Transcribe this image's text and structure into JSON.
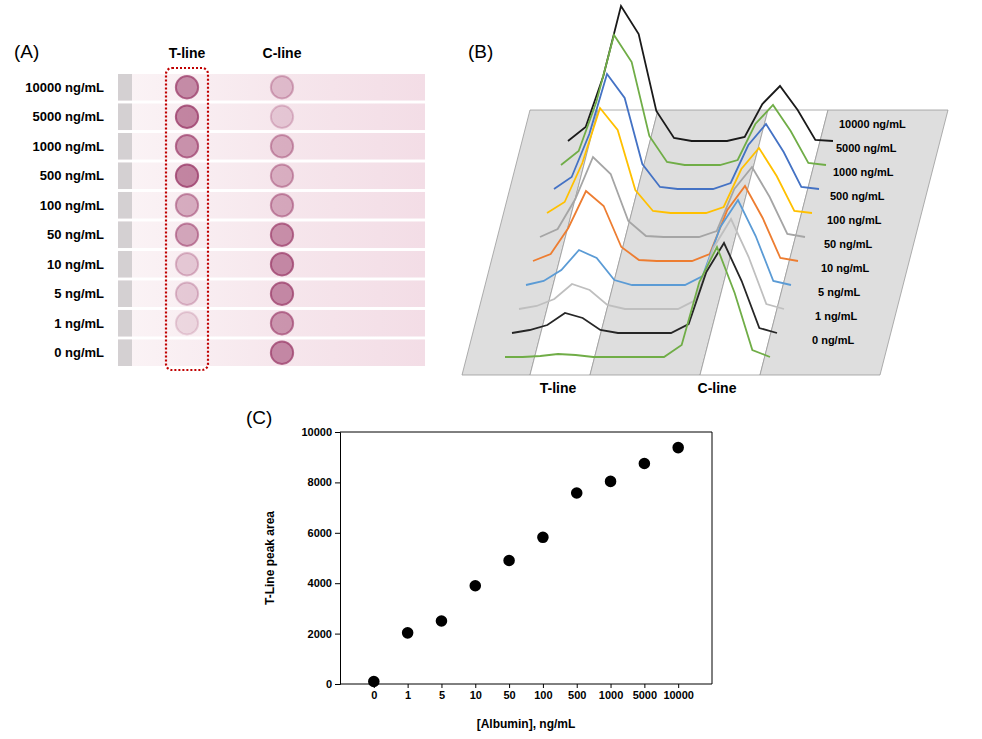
{
  "chart_data": [
    {
      "type": "spot_strip",
      "title": "(A)",
      "categories": [
        "10000 ng/mL",
        "5000 ng/mL",
        "1000 ng/mL",
        "500 ng/mL",
        "100 ng/mL",
        "50 ng/mL",
        "10 ng/mL",
        "5 ng/mL",
        "1 ng/mL",
        "0 ng/mL"
      ],
      "color": "#9c3d6b",
      "intensity_range": [
        0,
        1
      ],
      "series": [
        {
          "name": "T-line",
          "values": [
            0.75,
            0.8,
            0.7,
            0.8,
            0.5,
            0.55,
            0.3,
            0.28,
            0.18,
            0
          ]
        },
        {
          "name": "C-line",
          "values": [
            0.35,
            0.25,
            0.45,
            0.45,
            0.5,
            0.7,
            0.75,
            0.75,
            0.65,
            0.75
          ]
        }
      ]
    },
    {
      "type": "waterfall",
      "title": "(B)",
      "x": [
        0,
        1,
        2,
        3,
        4,
        5,
        6,
        7,
        8,
        9,
        10,
        11,
        12,
        13,
        14,
        15
      ],
      "xlim": [
        0,
        15
      ],
      "ylim": [
        0,
        150
      ],
      "xticks": [
        {
          "value": 3,
          "label": "T-line"
        },
        {
          "value": 12,
          "label": "C-line"
        }
      ],
      "tick_labels": "x",
      "series": [
        {
          "name": "10000 ng/mL",
          "color": "#1a1a1a",
          "values": [
            5,
            19,
            70,
            140,
            112,
            35,
            8,
            5,
            5,
            5,
            9,
            42,
            60,
            36,
            6,
            5
          ]
        },
        {
          "name": "5000 ng/mL",
          "color": "#70ad47",
          "values": [
            5,
            19,
            68,
            135,
            108,
            34,
            8,
            5,
            5,
            5,
            10,
            46,
            65,
            39,
            7,
            5
          ]
        },
        {
          "name": "1000 ng/mL",
          "color": "#4472c4",
          "values": [
            5,
            17,
            60,
            120,
            96,
            30,
            7,
            5,
            5,
            5,
            11,
            49,
            70,
            42,
            7,
            5
          ]
        },
        {
          "name": "500 ng/mL",
          "color": "#ffc000",
          "values": [
            5,
            16,
            55,
            110,
            88,
            28,
            7,
            5,
            5,
            5,
            11,
            49,
            70,
            42,
            7,
            5
          ]
        },
        {
          "name": "100 ng/mL",
          "color": "#a5a5a5",
          "values": [
            5,
            13,
            43,
            85,
            68,
            21,
            6,
            5,
            5,
            5,
            11,
            53,
            75,
            45,
            8,
            5
          ]
        },
        {
          "name": "50 ng/mL",
          "color": "#ed7d31",
          "values": [
            5,
            12,
            38,
            75,
            60,
            19,
            6,
            5,
            5,
            5,
            12,
            56,
            80,
            48,
            8,
            5
          ]
        },
        {
          "name": "10 ng/mL",
          "color": "#5b9bd5",
          "values": [
            5,
            9,
            20,
            40,
            32,
            10,
            5,
            5,
            5,
            5,
            14,
            63,
            90,
            54,
            9,
            5
          ]
        },
        {
          "name": "5 ng/mL",
          "color": "#bfbfbf",
          "values": [
            5,
            8,
            15,
            30,
            24,
            9,
            5,
            5,
            5,
            5,
            14,
            66,
            95,
            57,
            10,
            5
          ]
        },
        {
          "name": "1 ng/mL",
          "color": "#262626",
          "values": [
            5,
            8,
            13,
            25,
            20,
            8,
            5,
            5,
            5,
            5,
            14,
            66,
            95,
            57,
            10,
            5
          ]
        },
        {
          "name": "0 ng/mL",
          "color": "#70ad47",
          "values": [
            5,
            5,
            6,
            8,
            7,
            5,
            5,
            5,
            5,
            5,
            17,
            80,
            115,
            69,
            12,
            5
          ]
        }
      ]
    },
    {
      "type": "scatter",
      "title": "(C)",
      "xlabel": "[Albumin], ng/mL",
      "ylabel": "T-Line peak area",
      "categories": [
        "0",
        "1",
        "5",
        "10",
        "50",
        "100",
        "500",
        "1000",
        "5000",
        "10000"
      ],
      "values": [
        100,
        2030,
        2500,
        3900,
        4900,
        5820,
        7580,
        8040,
        8750,
        9380
      ],
      "ylim": [
        0,
        10000
      ],
      "yticks": [
        0,
        2000,
        4000,
        6000,
        8000,
        10000
      ],
      "color": "#000000",
      "marker": "circle",
      "grid": false
    }
  ]
}
